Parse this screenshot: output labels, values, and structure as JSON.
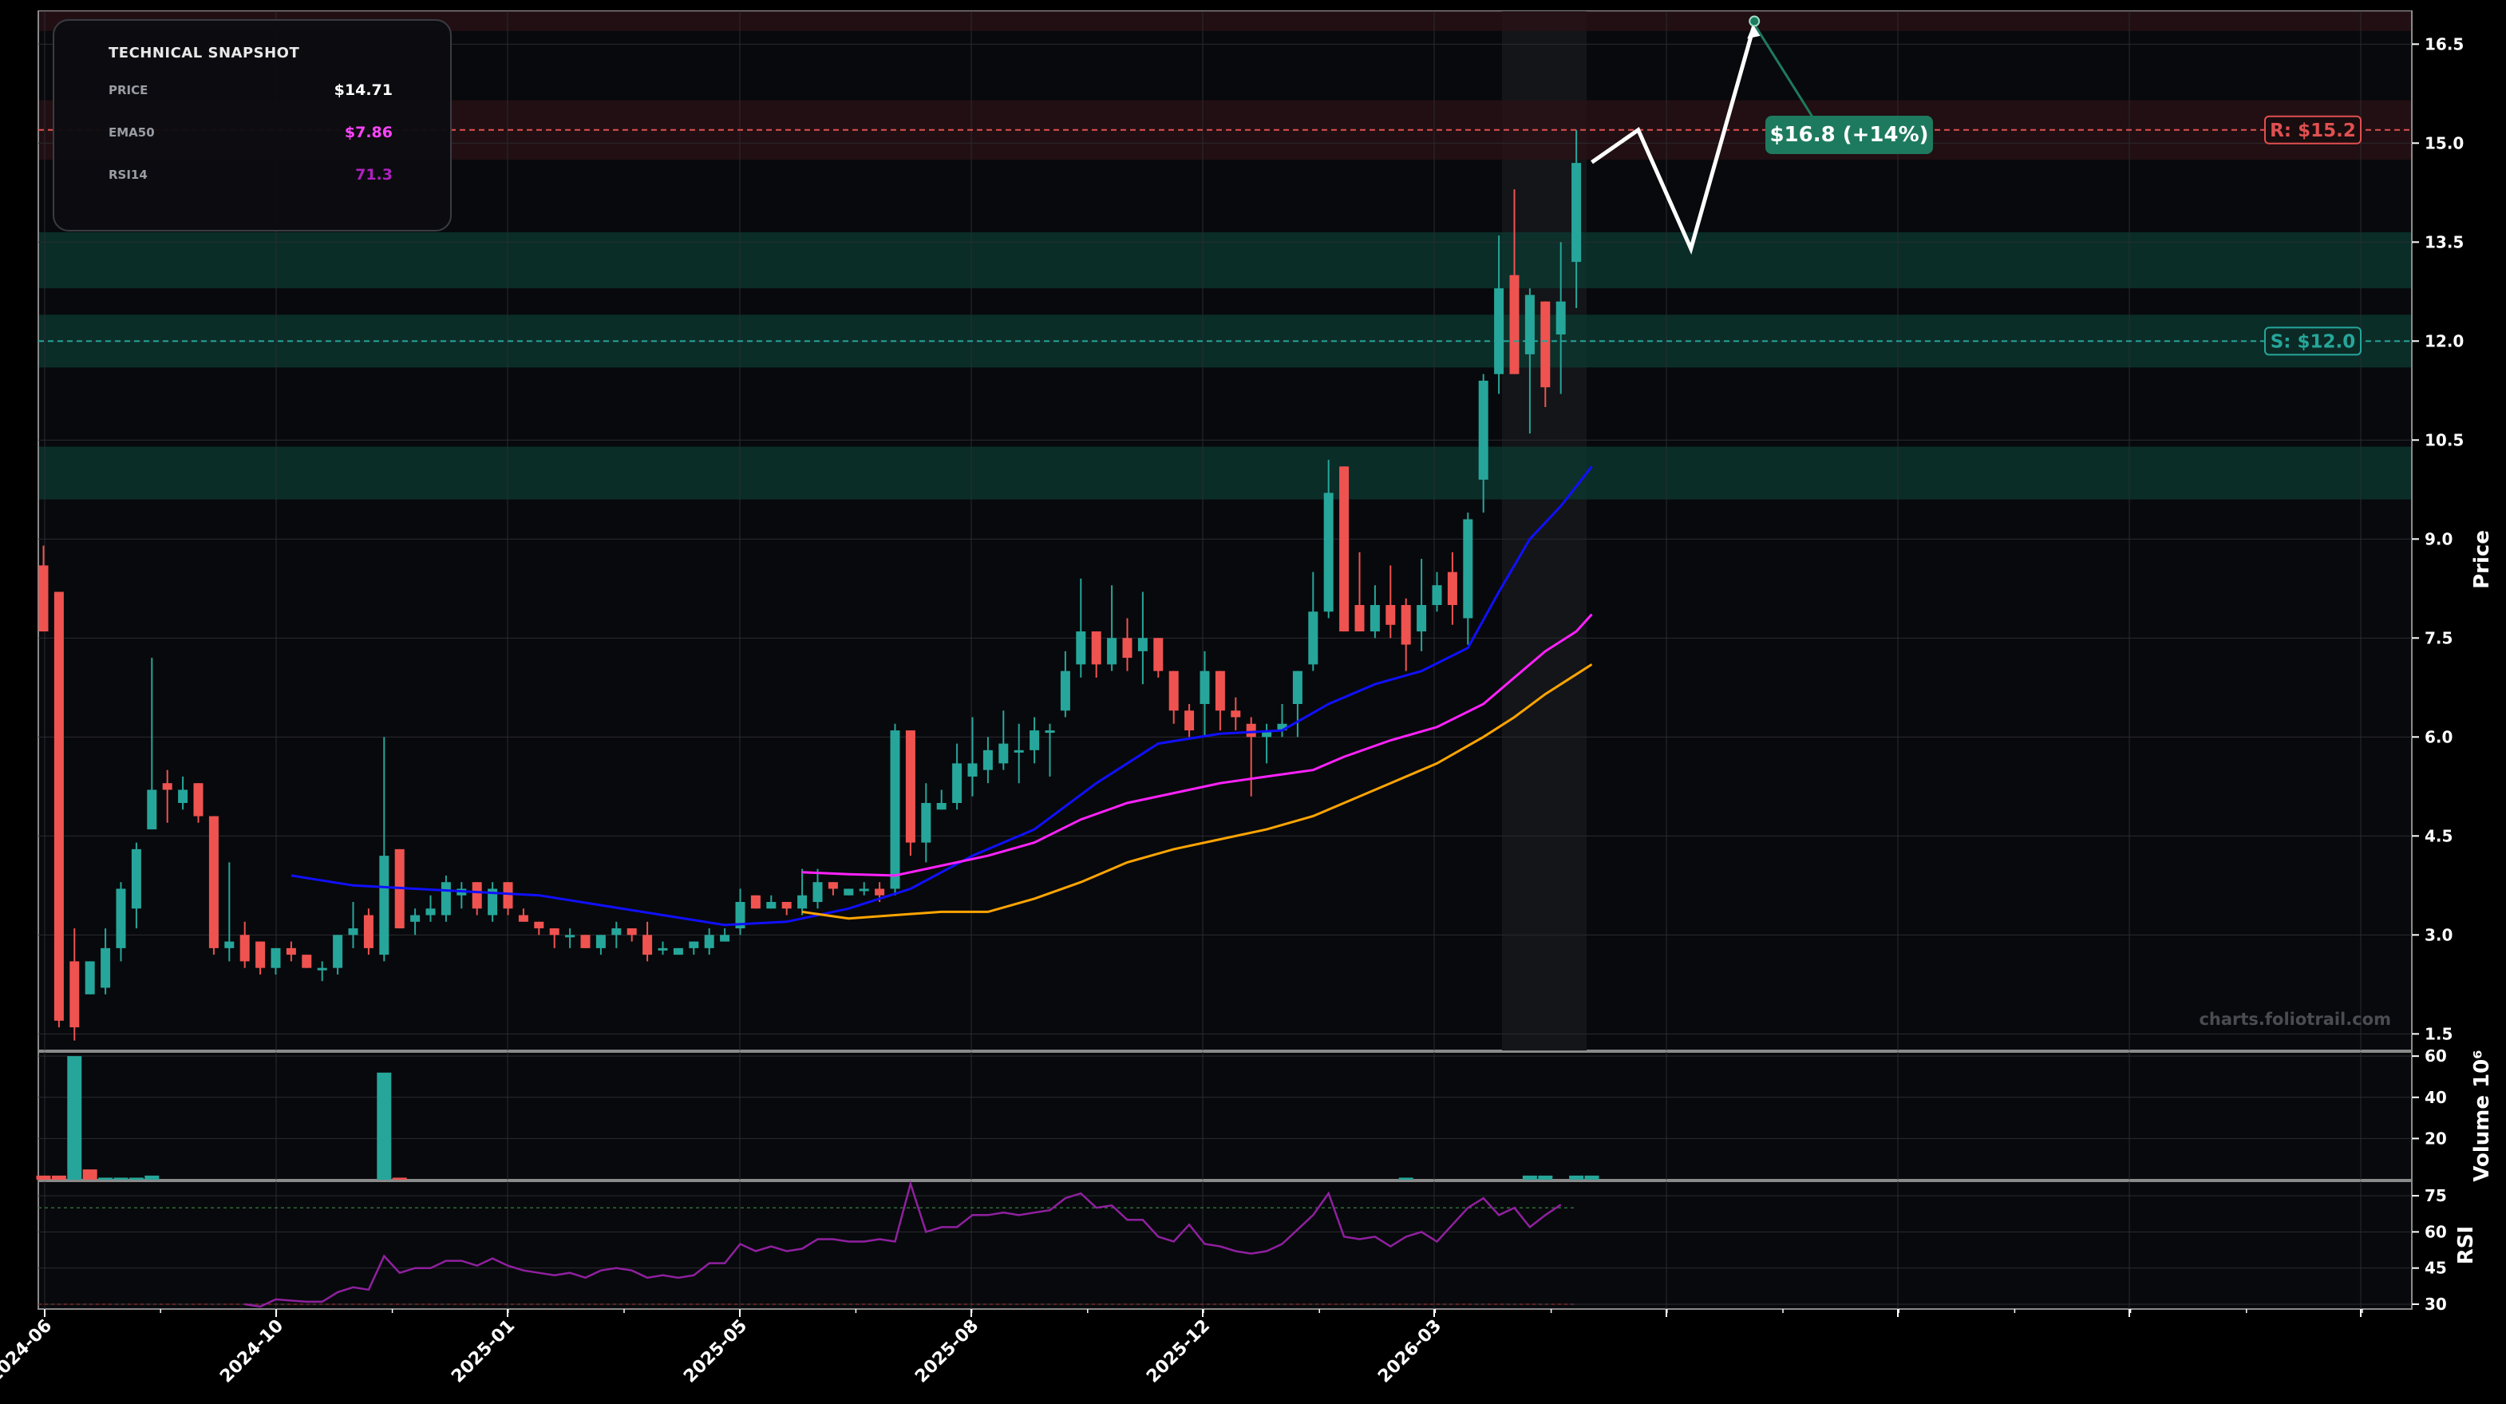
{
  "snapshot": {
    "title": "TECHNICAL SNAPSHOT",
    "rows": [
      {
        "label": "PRICE",
        "value": "$14.71",
        "color": "#ffffff"
      },
      {
        "label": "EMA50",
        "value": "$7.86",
        "color": "#ff44ff"
      },
      {
        "label": "RSI14",
        "value": "71.3",
        "color": "#b020c0"
      }
    ]
  },
  "watermark": "charts.foliotrail.com",
  "colors": {
    "up": "#26a69a",
    "down": "#ef5350",
    "ema_fast": "#1010ff",
    "ema50": "#ff22ff",
    "ema_slow": "#ffa500",
    "rsi": "#9020a0",
    "resistance": "#e05050",
    "support": "#26a69a",
    "target": "#1e7a5e",
    "projection": "#ffffff"
  },
  "chart_data": {
    "type": "candlestick",
    "x_tick_labels": [
      "2024-06",
      "2024-10",
      "2025-01",
      "2025-05",
      "2025-08",
      "2025-12",
      "2026-03"
    ],
    "price_panel": {
      "ylabel": "Price",
      "ylim": [
        1.25,
        17.0
      ],
      "y_ticks": [
        1.5,
        3.0,
        4.5,
        6.0,
        7.5,
        9.0,
        10.5,
        12.0,
        13.5,
        15.0,
        16.5
      ],
      "y_tick_labels": [
        "1.5",
        "3.0",
        "4.5",
        "6.0",
        "7.5",
        "9.0",
        "10.5",
        "12.0",
        "13.5",
        "15.0",
        "16.5"
      ],
      "candles_ohlc": [
        [
          8.6,
          8.9,
          7.6,
          7.6
        ],
        [
          8.2,
          8.2,
          1.6,
          1.7
        ],
        [
          2.6,
          3.1,
          1.4,
          1.6
        ],
        [
          2.1,
          2.6,
          2.1,
          2.6
        ],
        [
          2.2,
          3.1,
          2.1,
          2.8
        ],
        [
          2.8,
          3.8,
          2.6,
          3.7
        ],
        [
          3.4,
          4.4,
          3.1,
          4.3
        ],
        [
          4.6,
          7.2,
          4.6,
          5.2
        ],
        [
          5.3,
          5.5,
          4.7,
          5.2
        ],
        [
          5.0,
          5.4,
          4.9,
          5.2
        ],
        [
          5.3,
          5.3,
          4.7,
          4.8
        ],
        [
          4.8,
          4.8,
          2.7,
          2.8
        ],
        [
          2.8,
          4.1,
          2.6,
          2.9
        ],
        [
          3.0,
          3.2,
          2.5,
          2.6
        ],
        [
          2.9,
          2.9,
          2.4,
          2.5
        ],
        [
          2.5,
          2.8,
          2.4,
          2.8
        ],
        [
          2.8,
          2.9,
          2.6,
          2.7
        ],
        [
          2.7,
          2.7,
          2.5,
          2.5
        ],
        [
          2.5,
          2.6,
          2.3,
          2.5
        ],
        [
          2.5,
          3.0,
          2.4,
          3.0
        ],
        [
          3.0,
          3.5,
          2.8,
          3.1
        ],
        [
          3.3,
          3.4,
          2.7,
          2.8
        ],
        [
          2.7,
          6.0,
          2.6,
          4.2
        ],
        [
          4.3,
          4.3,
          3.1,
          3.1
        ],
        [
          3.2,
          3.4,
          3.0,
          3.3
        ],
        [
          3.3,
          3.6,
          3.2,
          3.4
        ],
        [
          3.3,
          3.9,
          3.2,
          3.8
        ],
        [
          3.6,
          3.8,
          3.4,
          3.7
        ],
        [
          3.8,
          3.8,
          3.3,
          3.4
        ],
        [
          3.3,
          3.8,
          3.2,
          3.7
        ],
        [
          3.8,
          3.8,
          3.3,
          3.4
        ],
        [
          3.3,
          3.4,
          3.2,
          3.2
        ],
        [
          3.2,
          3.2,
          3.0,
          3.1
        ],
        [
          3.1,
          3.1,
          2.8,
          3.0
        ],
        [
          3.0,
          3.1,
          2.8,
          3.0
        ],
        [
          3.0,
          3.0,
          2.8,
          2.8
        ],
        [
          2.8,
          3.0,
          2.7,
          3.0
        ],
        [
          3.0,
          3.2,
          2.8,
          3.1
        ],
        [
          3.1,
          3.1,
          2.9,
          3.0
        ],
        [
          3.0,
          3.2,
          2.6,
          2.7
        ],
        [
          2.8,
          2.9,
          2.7,
          2.8
        ],
        [
          2.7,
          2.8,
          2.7,
          2.8
        ],
        [
          2.8,
          2.9,
          2.7,
          2.9
        ],
        [
          2.8,
          3.1,
          2.7,
          3.0
        ],
        [
          2.9,
          3.1,
          2.9,
          3.0
        ],
        [
          3.1,
          3.7,
          3.0,
          3.5
        ],
        [
          3.6,
          3.6,
          3.4,
          3.4
        ],
        [
          3.4,
          3.6,
          3.4,
          3.5
        ],
        [
          3.5,
          3.5,
          3.3,
          3.4
        ],
        [
          3.4,
          4.0,
          3.3,
          3.6
        ],
        [
          3.5,
          4.0,
          3.4,
          3.8
        ],
        [
          3.8,
          3.8,
          3.6,
          3.7
        ],
        [
          3.6,
          3.7,
          3.6,
          3.7
        ],
        [
          3.7,
          3.8,
          3.6,
          3.7
        ],
        [
          3.7,
          3.8,
          3.5,
          3.6
        ],
        [
          3.7,
          6.2,
          3.6,
          6.1
        ],
        [
          6.1,
          6.1,
          4.2,
          4.4
        ],
        [
          4.4,
          5.3,
          4.1,
          5.0
        ],
        [
          4.9,
          5.2,
          4.9,
          5.0
        ],
        [
          5.0,
          5.9,
          4.9,
          5.6
        ],
        [
          5.4,
          6.3,
          5.1,
          5.6
        ],
        [
          5.5,
          6.0,
          5.3,
          5.8
        ],
        [
          5.6,
          6.4,
          5.5,
          5.9
        ],
        [
          5.8,
          6.2,
          5.3,
          5.8
        ],
        [
          5.8,
          6.3,
          5.6,
          6.1
        ],
        [
          6.1,
          6.2,
          5.4,
          6.1
        ],
        [
          6.4,
          7.3,
          6.3,
          7.0
        ],
        [
          7.1,
          8.4,
          6.9,
          7.6
        ],
        [
          7.6,
          7.6,
          6.9,
          7.1
        ],
        [
          7.1,
          8.3,
          7.0,
          7.5
        ],
        [
          7.5,
          7.8,
          7.0,
          7.2
        ],
        [
          7.3,
          8.2,
          6.8,
          7.5
        ],
        [
          7.5,
          7.5,
          6.9,
          7.0
        ],
        [
          7.0,
          7.0,
          6.2,
          6.4
        ],
        [
          6.4,
          6.5,
          6.0,
          6.1
        ],
        [
          6.5,
          7.3,
          6.0,
          7.0
        ],
        [
          7.0,
          7.0,
          6.1,
          6.4
        ],
        [
          6.4,
          6.6,
          6.1,
          6.3
        ],
        [
          6.2,
          6.3,
          5.1,
          6.0
        ],
        [
          6.0,
          6.2,
          5.6,
          6.1
        ],
        [
          6.1,
          6.5,
          6.0,
          6.2
        ],
        [
          6.5,
          7.0,
          6.0,
          7.0
        ],
        [
          7.1,
          8.5,
          7.0,
          7.9
        ],
        [
          7.9,
          10.2,
          7.8,
          9.7
        ],
        [
          10.1,
          10.1,
          7.6,
          7.6
        ],
        [
          8.0,
          8.8,
          7.6,
          7.6
        ],
        [
          7.6,
          8.3,
          7.5,
          8.0
        ],
        [
          8.0,
          8.6,
          7.5,
          7.7
        ],
        [
          8.0,
          8.1,
          7.0,
          7.4
        ],
        [
          7.6,
          8.7,
          7.3,
          8.0
        ],
        [
          8.0,
          8.5,
          7.9,
          8.3
        ],
        [
          8.5,
          8.8,
          7.7,
          8.0
        ],
        [
          7.8,
          9.4,
          7.4,
          9.3
        ],
        [
          9.9,
          11.5,
          9.4,
          11.4
        ],
        [
          11.5,
          13.6,
          11.2,
          12.8
        ],
        [
          13.0,
          14.3,
          11.5,
          11.5
        ],
        [
          11.8,
          12.8,
          10.6,
          12.7
        ],
        [
          12.6,
          12.6,
          11.0,
          11.3
        ],
        [
          12.1,
          13.5,
          11.2,
          12.6
        ],
        [
          13.2,
          15.2,
          12.5,
          14.7
        ]
      ],
      "ema_fast": [
        [
          16,
          3.9
        ],
        [
          20,
          3.75
        ],
        [
          24,
          3.7
        ],
        [
          28,
          3.65
        ],
        [
          32,
          3.6
        ],
        [
          36,
          3.45
        ],
        [
          40,
          3.3
        ],
        [
          44,
          3.15
        ],
        [
          48,
          3.2
        ],
        [
          52,
          3.4
        ],
        [
          56,
          3.7
        ],
        [
          60,
          4.2
        ],
        [
          64,
          4.6
        ],
        [
          68,
          5.3
        ],
        [
          72,
          5.9
        ],
        [
          76,
          6.05
        ],
        [
          80,
          6.1
        ],
        [
          83,
          6.5
        ],
        [
          86,
          6.8
        ],
        [
          89,
          7.0
        ],
        [
          92,
          7.35
        ],
        [
          94,
          8.2
        ],
        [
          96,
          9.0
        ],
        [
          98,
          9.5
        ],
        [
          100,
          10.1
        ]
      ],
      "ema50": [
        [
          49,
          3.95
        ],
        [
          52,
          3.92
        ],
        [
          55,
          3.9
        ],
        [
          58,
          4.05
        ],
        [
          61,
          4.2
        ],
        [
          64,
          4.4
        ],
        [
          67,
          4.75
        ],
        [
          70,
          5.0
        ],
        [
          73,
          5.15
        ],
        [
          76,
          5.3
        ],
        [
          79,
          5.4
        ],
        [
          82,
          5.5
        ],
        [
          84,
          5.7
        ],
        [
          87,
          5.95
        ],
        [
          90,
          6.15
        ],
        [
          93,
          6.5
        ],
        [
          95,
          6.9
        ],
        [
          97,
          7.3
        ],
        [
          99,
          7.6
        ],
        [
          100,
          7.86
        ]
      ],
      "ema_slow": [
        [
          49,
          3.35
        ],
        [
          52,
          3.25
        ],
        [
          55,
          3.3
        ],
        [
          58,
          3.35
        ],
        [
          61,
          3.35
        ],
        [
          64,
          3.55
        ],
        [
          67,
          3.8
        ],
        [
          70,
          4.1
        ],
        [
          73,
          4.3
        ],
        [
          76,
          4.45
        ],
        [
          79,
          4.6
        ],
        [
          82,
          4.8
        ],
        [
          84,
          5.0
        ],
        [
          87,
          5.3
        ],
        [
          90,
          5.6
        ],
        [
          93,
          6.0
        ],
        [
          95,
          6.3
        ],
        [
          97,
          6.65
        ],
        [
          99,
          6.95
        ],
        [
          100,
          7.1
        ]
      ],
      "zones": [
        {
          "kind": "resistance",
          "low": 16.7,
          "high": 17.0
        },
        {
          "kind": "resistance",
          "low": 14.75,
          "high": 15.65
        },
        {
          "kind": "support",
          "low": 12.8,
          "high": 13.65
        },
        {
          "kind": "support",
          "low": 11.6,
          "high": 12.4
        },
        {
          "kind": "support",
          "low": 9.6,
          "high": 10.4
        }
      ],
      "resistance": {
        "value": 15.2,
        "label": "R: $15.2"
      },
      "support": {
        "value": 12.0,
        "label": "S: $12.0"
      },
      "projection": [
        [
          100,
          14.71
        ],
        [
          103,
          15.2
        ],
        [
          106.4,
          13.4
        ],
        [
          110.5,
          16.8
        ]
      ],
      "target": {
        "label": "$16.8 (+14%)",
        "value": 16.8
      }
    },
    "volume_panel": {
      "ylabel": "Volume  10⁶",
      "ylim": [
        0,
        62
      ],
      "y_ticks": [
        20,
        40,
        60
      ],
      "y_tick_labels": [
        "20",
        "40",
        "60"
      ],
      "bars": [
        [
          0,
          2,
          "down"
        ],
        [
          1,
          2,
          "down"
        ],
        [
          2,
          60,
          "up"
        ],
        [
          3,
          5,
          "down"
        ],
        [
          4,
          1,
          "up"
        ],
        [
          5,
          1,
          "up"
        ],
        [
          6,
          1,
          "up"
        ],
        [
          7,
          2,
          "up"
        ],
        [
          22,
          52,
          "up"
        ],
        [
          23,
          1,
          "down"
        ],
        [
          88,
          1,
          "up"
        ],
        [
          96,
          2,
          "up"
        ],
        [
          97,
          2,
          "up"
        ],
        [
          99,
          2,
          "up"
        ],
        [
          100,
          2,
          "up"
        ]
      ]
    },
    "rsi_panel": {
      "ylabel": "RSI",
      "ylim": [
        28,
        81
      ],
      "y_ticks": [
        30,
        45,
        60,
        75
      ],
      "y_tick_labels": [
        "30",
        "45",
        "60",
        "75"
      ],
      "reference_lines": [
        30,
        70
      ],
      "rsi_values": [
        [
          13,
          30
        ],
        [
          14,
          29
        ],
        [
          15,
          32
        ],
        [
          17,
          31
        ],
        [
          18,
          31
        ],
        [
          19,
          35
        ],
        [
          20,
          37
        ],
        [
          21,
          36
        ],
        [
          22,
          50
        ],
        [
          23,
          43
        ],
        [
          24,
          45
        ],
        [
          25,
          45
        ],
        [
          26,
          48
        ],
        [
          27,
          48
        ],
        [
          28,
          46
        ],
        [
          29,
          49
        ],
        [
          30,
          46
        ],
        [
          31,
          44
        ],
        [
          32,
          43
        ],
        [
          33,
          42
        ],
        [
          34,
          43
        ],
        [
          35,
          41
        ],
        [
          36,
          44
        ],
        [
          37,
          45
        ],
        [
          38,
          44
        ],
        [
          39,
          41
        ],
        [
          40,
          42
        ],
        [
          41,
          41
        ],
        [
          42,
          42
        ],
        [
          43,
          47
        ],
        [
          44,
          47
        ],
        [
          45,
          55
        ],
        [
          46,
          52
        ],
        [
          47,
          54
        ],
        [
          48,
          52
        ],
        [
          49,
          53
        ],
        [
          50,
          57
        ],
        [
          51,
          57
        ],
        [
          52,
          56
        ],
        [
          53,
          56
        ],
        [
          54,
          57
        ],
        [
          55,
          56
        ],
        [
          56,
          80
        ],
        [
          57,
          60
        ],
        [
          58,
          62
        ],
        [
          59,
          62
        ],
        [
          60,
          67
        ],
        [
          61,
          67
        ],
        [
          62,
          68
        ],
        [
          63,
          67
        ],
        [
          64,
          68
        ],
        [
          65,
          69
        ],
        [
          66,
          74
        ],
        [
          67,
          76
        ],
        [
          68,
          70
        ],
        [
          69,
          71
        ],
        [
          70,
          65
        ],
        [
          71,
          65
        ],
        [
          72,
          58
        ],
        [
          73,
          56
        ],
        [
          74,
          63
        ],
        [
          75,
          55
        ],
        [
          76,
          54
        ],
        [
          77,
          52
        ],
        [
          78,
          51
        ],
        [
          79,
          52
        ],
        [
          80,
          55
        ],
        [
          81,
          61
        ],
        [
          82,
          67
        ],
        [
          83,
          76
        ],
        [
          84,
          58
        ],
        [
          85,
          57
        ],
        [
          86,
          58
        ],
        [
          87,
          54
        ],
        [
          88,
          58
        ],
        [
          89,
          60
        ],
        [
          90,
          56
        ],
        [
          91,
          63
        ],
        [
          92,
          70
        ],
        [
          93,
          74
        ],
        [
          94,
          67
        ],
        [
          95,
          70
        ],
        [
          96,
          62
        ],
        [
          97,
          67
        ],
        [
          98,
          71.3
        ]
      ]
    }
  }
}
